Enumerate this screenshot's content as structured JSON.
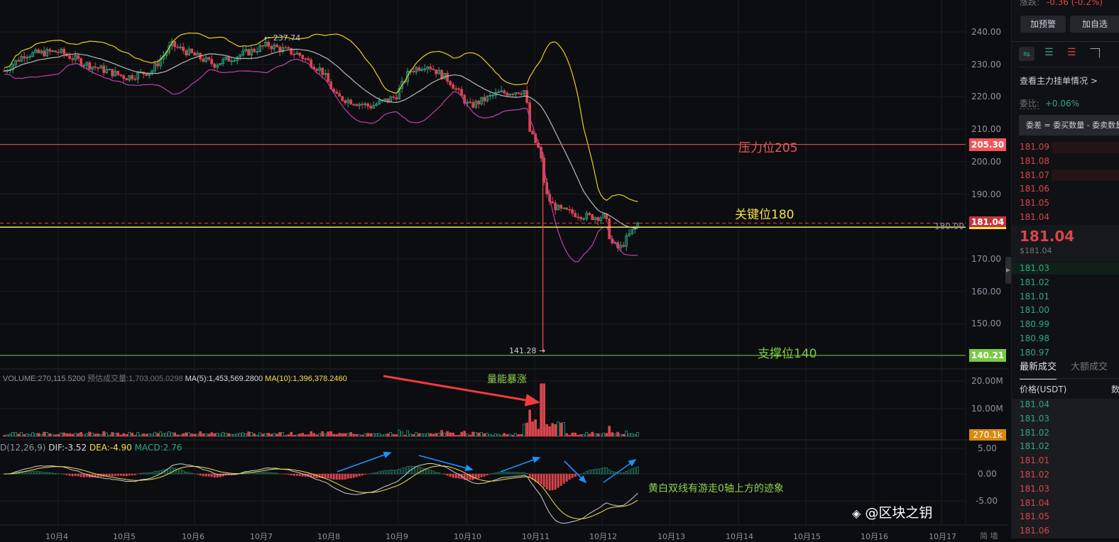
{
  "price_axis": {
    "ticks": [
      "240.00",
      "230.00",
      "220.00",
      "210.00",
      "200.00",
      "190.00",
      "180.00",
      "170.00",
      "160.00",
      "150.00"
    ],
    "tick_values": [
      240,
      230,
      220,
      210,
      200,
      190,
      180,
      170,
      160,
      150
    ],
    "resistance_tag": "205.30",
    "current_tag": "181.04",
    "support_tag": "140.21"
  },
  "volume_axis": {
    "ticks": [
      "20.00M",
      "10.00M"
    ],
    "current_tag": "270.1k"
  },
  "macd_axis": {
    "ticks": [
      "5.00",
      "0.00",
      "-5.00"
    ]
  },
  "x_axis": {
    "ticks": [
      "10月4",
      "10月5",
      "10月6",
      "10月7",
      "10月8",
      "10月9",
      "10月10",
      "10月11",
      "10月12",
      "10月13",
      "10月14",
      "10月15",
      "10月16",
      "10月17"
    ],
    "corner": "简 墙"
  },
  "annotations": {
    "resistance": "压力位205",
    "key": "关键位180",
    "support": "支撑位140",
    "volume_surge": "量能暴涨",
    "macd_note": "黄白双线有游走0轴上方的迹象",
    "high_label": "← 237.74",
    "low_label": "141.28 →"
  },
  "volume_legend": {
    "volume": "VOLUME:270,115.5200",
    "estimate": "预估成交量:1,703,005.0298",
    "ma5": "MA(5):1,453,569.2800",
    "ma10": "MA(10):1,396,378.2460"
  },
  "macd_legend": {
    "name": "D(12,26,9)",
    "dif": "DIF:-3.52",
    "dea": "DEA:-4.90",
    "macd": "MACD:2.76"
  },
  "colors": {
    "up": "#2ea782",
    "down": "#d8454d",
    "boll_upper": "#e8d020",
    "boll_mid": "#b8b8b8",
    "boll_lower": "#c040a8",
    "resistance": "#f0565a",
    "support": "#7ac943",
    "key": "#f5e04a",
    "volume_tag": "#d88a0c",
    "arrow_blue": "#1e90ff"
  },
  "chart_data": {
    "type": "candlestick",
    "price_range": [
      140,
      245
    ],
    "close_keypoints_by_date": [
      [
        "10-03 05:00",
        228
      ],
      [
        "10-03 12:00",
        233
      ],
      [
        "10-04 00:00",
        234
      ],
      [
        "10-04 10:00",
        230
      ],
      [
        "10-05 00:00",
        226
      ],
      [
        "10-05 09:00",
        228
      ],
      [
        "10-05 16:00",
        236
      ],
      [
        "10-06 07:00",
        230
      ],
      [
        "10-07 02:00",
        236
      ],
      [
        "10-07 13:00",
        233
      ],
      [
        "10-07 21:00",
        228
      ],
      [
        "10-08 02:00",
        220
      ],
      [
        "10-08 14:00",
        217
      ],
      [
        "10-08 23:00",
        220
      ],
      [
        "10-09 04:00",
        228
      ],
      [
        "10-09 10:00",
        230
      ],
      [
        "10-09 18:00",
        225
      ],
      [
        "10-10 01:00",
        217
      ],
      [
        "10-10 11:00",
        221
      ],
      [
        "10-10 21:00",
        222
      ],
      [
        "10-10 22:00",
        210
      ],
      [
        "10-11 02:00",
        203
      ],
      [
        "10-11 04:00",
        190
      ],
      [
        "10-11 06:00",
        187
      ],
      [
        "10-11 09:00",
        185
      ],
      [
        "10-11 19:00",
        183
      ],
      [
        "10-12 01:00",
        183
      ],
      [
        "10-12 03:00",
        175
      ],
      [
        "10-12 06:00",
        173
      ],
      [
        "10-12 10:00",
        178
      ],
      [
        "10-12 13:00",
        181.04
      ]
    ],
    "high": 237.74,
    "low": 141.28,
    "levels": {
      "resistance": 205,
      "key": 180,
      "support": 140
    }
  },
  "panel": {
    "change_label": "涨跌:",
    "change_value": "-0.36 (-0.2%)",
    "alert_button": "加预警",
    "watchlist_button": "加自选",
    "main_orders_link": "查看主力挂单情况 >",
    "ratio_label": "委比:",
    "ratio_value": "+0.06%",
    "tooltip": "委差 = 委买数量 - 委卖数量",
    "asks": [
      "181.09",
      "181.08",
      "181.07",
      "181.06",
      "181.05",
      "181.04"
    ],
    "last_price": "181.04",
    "last_price_usd": "$181.04",
    "bids": [
      "181.03",
      "181.02",
      "181.01",
      "181.00",
      "180.99",
      "180.98",
      "180.97"
    ],
    "tabs": [
      "最新成交",
      "大额成交"
    ],
    "trade_headers": [
      "价格(USDT)",
      "数量"
    ],
    "trades": [
      {
        "p": "181.04",
        "s": "buy"
      },
      {
        "p": "181.03",
        "s": "buy"
      },
      {
        "p": "181.02",
        "s": "buy"
      },
      {
        "p": "181.02",
        "s": "buy"
      },
      {
        "p": "181.01",
        "s": "sell"
      },
      {
        "p": "181.02",
        "s": "sell"
      },
      {
        "p": "181.03",
        "s": "sell"
      },
      {
        "p": "181.04",
        "s": "sell"
      },
      {
        "p": "181.05",
        "s": "sell"
      },
      {
        "p": "181.06",
        "s": "sell"
      }
    ],
    "watermark": "@区块之钥"
  }
}
